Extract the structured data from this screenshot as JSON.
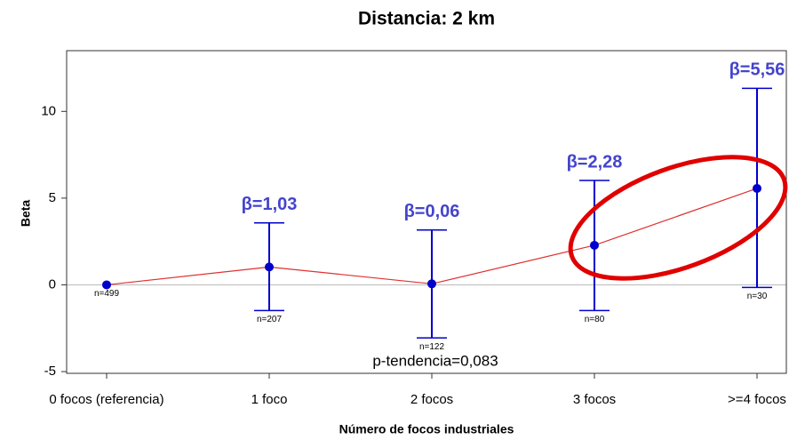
{
  "chart_data": {
    "type": "errorline",
    "title": "Distancia: 2 km",
    "xlabel": "Número de focos industriales",
    "ylabel": "Beta",
    "categories": [
      "0 focos (referencia)",
      "1 foco",
      "2 focos",
      "3 focos",
      ">=4 focos"
    ],
    "values": [
      0,
      1.03,
      0.06,
      2.28,
      5.56
    ],
    "value_labels": [
      null,
      "β=1,03",
      "β=0,06",
      "β=2,28",
      "β=5,56"
    ],
    "ci_lower": [
      null,
      -1.48,
      -3.06,
      -1.48,
      -0.15
    ],
    "ci_upper": [
      null,
      3.57,
      3.16,
      6.02,
      11.33
    ],
    "n_labels": [
      "n=499",
      "n=207",
      "n=122",
      "n=80",
      "n=30"
    ],
    "annotation": "p-tendencia=0,083",
    "ylim": [
      -5.1,
      13.5
    ],
    "yticks": [
      -5,
      0,
      5,
      10
    ],
    "reference_line": 0,
    "line_color": "#e03030",
    "point_color": "#0000cc",
    "label_color": "#4444cc"
  }
}
